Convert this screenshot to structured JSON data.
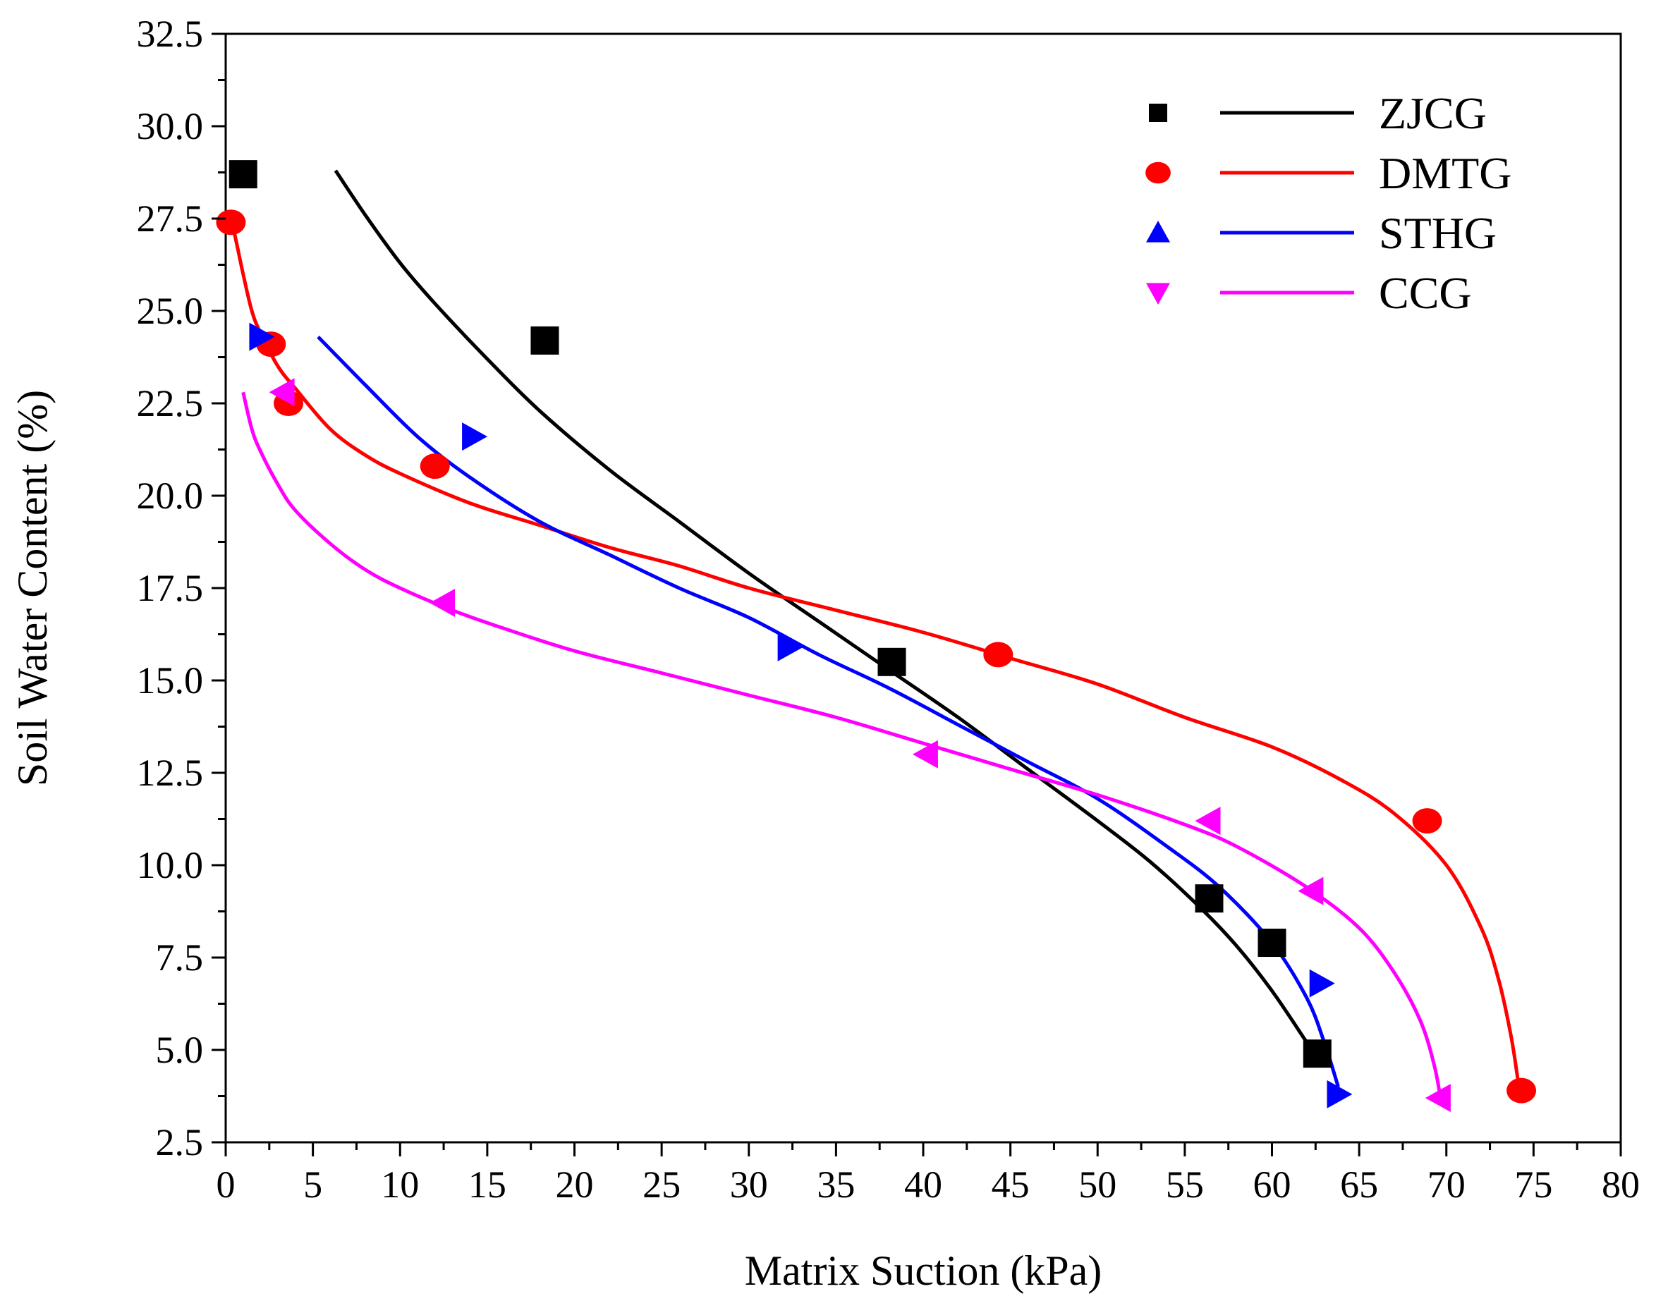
{
  "chart_data": {
    "type": "scatter",
    "title": "",
    "xlabel": "Matrix Suction  (kPa)",
    "ylabel": "Soil Water Content (%)",
    "xlim": [
      0,
      80
    ],
    "ylim": [
      2.5,
      32.5
    ],
    "xticks": [
      "0",
      "5",
      "10",
      "15",
      "20",
      "25",
      "30",
      "35",
      "40",
      "45",
      "50",
      "55",
      "60",
      "65",
      "70",
      "75",
      "80"
    ],
    "yticks": [
      "2.5",
      "5.0",
      "7.5",
      "10.0",
      "12.5",
      "15.0",
      "17.5",
      "20.0",
      "22.5",
      "25.0",
      "27.5",
      "30.0",
      "32.5"
    ],
    "legend_position": "top-right",
    "series": [
      {
        "name": "ZJCG",
        "color": "#000000",
        "marker": "square",
        "points": [
          [
            1,
            28.7
          ],
          [
            18.3,
            24.2
          ],
          [
            38.2,
            15.5
          ],
          [
            56.4,
            9.1
          ],
          [
            60,
            7.9
          ],
          [
            62.6,
            4.9
          ]
        ],
        "fit": [
          [
            6.3,
            28.8
          ],
          [
            8,
            27.6
          ],
          [
            10,
            26.3
          ],
          [
            12,
            25.2
          ],
          [
            15,
            23.7
          ],
          [
            18,
            22.3
          ],
          [
            22,
            20.7
          ],
          [
            26,
            19.3
          ],
          [
            30,
            17.9
          ],
          [
            34,
            16.6
          ],
          [
            38,
            15.3
          ],
          [
            42,
            14.0
          ],
          [
            46,
            12.6
          ],
          [
            50,
            11.2
          ],
          [
            53,
            10.1
          ],
          [
            56,
            8.8
          ],
          [
            58,
            7.8
          ],
          [
            60,
            6.6
          ],
          [
            62,
            5.2
          ],
          [
            62.7,
            4.7
          ]
        ]
      },
      {
        "name": "DMTG",
        "color": "#ff0000",
        "marker": "circle",
        "points": [
          [
            0.3,
            27.4
          ],
          [
            2.6,
            24.1
          ],
          [
            3.6,
            22.5
          ],
          [
            12,
            20.8
          ],
          [
            44.3,
            15.7
          ],
          [
            68.9,
            11.2
          ],
          [
            74.3,
            3.9
          ]
        ],
        "fit": [
          [
            0.2,
            27.6
          ],
          [
            0.5,
            27.1
          ],
          [
            1,
            26
          ],
          [
            1.5,
            25
          ],
          [
            2,
            24.4
          ],
          [
            3,
            23.5
          ],
          [
            4,
            22.9
          ],
          [
            6,
            21.8
          ],
          [
            8,
            21.1
          ],
          [
            10,
            20.6
          ],
          [
            14,
            19.8
          ],
          [
            18,
            19.2
          ],
          [
            22,
            18.6
          ],
          [
            26,
            18.1
          ],
          [
            30,
            17.5
          ],
          [
            35,
            16.9
          ],
          [
            40,
            16.3
          ],
          [
            45,
            15.6
          ],
          [
            50,
            14.9
          ],
          [
            55,
            14.0
          ],
          [
            60,
            13.2
          ],
          [
            64,
            12.3
          ],
          [
            67,
            11.4
          ],
          [
            70,
            10.0
          ],
          [
            72,
            8.3
          ],
          [
            73,
            6.9
          ],
          [
            73.7,
            5.4
          ],
          [
            74.1,
            4.2
          ]
        ]
      },
      {
        "name": "STHG",
        "color": "#0000ff",
        "marker": "triangle-up",
        "points": [
          [
            2,
            24.3
          ],
          [
            14.2,
            21.6
          ],
          [
            32.3,
            15.9
          ],
          [
            62.8,
            6.8
          ],
          [
            63.8,
            3.8
          ]
        ],
        "fit": [
          [
            5.3,
            24.3
          ],
          [
            8,
            23.0
          ],
          [
            11,
            21.6
          ],
          [
            14,
            20.5
          ],
          [
            18,
            19.3
          ],
          [
            22,
            18.4
          ],
          [
            26,
            17.5
          ],
          [
            30,
            16.7
          ],
          [
            34,
            15.7
          ],
          [
            38,
            14.8
          ],
          [
            42,
            13.8
          ],
          [
            46,
            12.8
          ],
          [
            50,
            11.8
          ],
          [
            54,
            10.5
          ],
          [
            57,
            9.4
          ],
          [
            60,
            7.9
          ],
          [
            62,
            6.4
          ],
          [
            63,
            5.2
          ],
          [
            63.8,
            4.0
          ]
        ]
      },
      {
        "name": "CCG",
        "color": "#ff00ff",
        "marker": "triangle-down",
        "points": [
          [
            3.3,
            22.8
          ],
          [
            12.5,
            17.1
          ],
          [
            40.2,
            13
          ],
          [
            56.4,
            11.2
          ],
          [
            62.3,
            9.3
          ],
          [
            69.6,
            3.7
          ]
        ],
        "fit": [
          [
            1,
            22.8
          ],
          [
            1.5,
            21.8
          ],
          [
            2,
            21.2
          ],
          [
            3,
            20.3
          ],
          [
            4,
            19.6
          ],
          [
            6,
            18.7
          ],
          [
            8,
            18.0
          ],
          [
            10,
            17.5
          ],
          [
            13,
            16.9
          ],
          [
            16,
            16.4
          ],
          [
            20,
            15.8
          ],
          [
            25,
            15.2
          ],
          [
            30,
            14.6
          ],
          [
            35,
            14.0
          ],
          [
            40,
            13.3
          ],
          [
            45,
            12.6
          ],
          [
            50,
            11.9
          ],
          [
            55,
            11.1
          ],
          [
            58,
            10.5
          ],
          [
            62,
            9.4
          ],
          [
            65,
            8.3
          ],
          [
            67,
            7.1
          ],
          [
            68.5,
            5.8
          ],
          [
            69.3,
            4.6
          ],
          [
            69.7,
            3.6
          ]
        ]
      }
    ]
  }
}
